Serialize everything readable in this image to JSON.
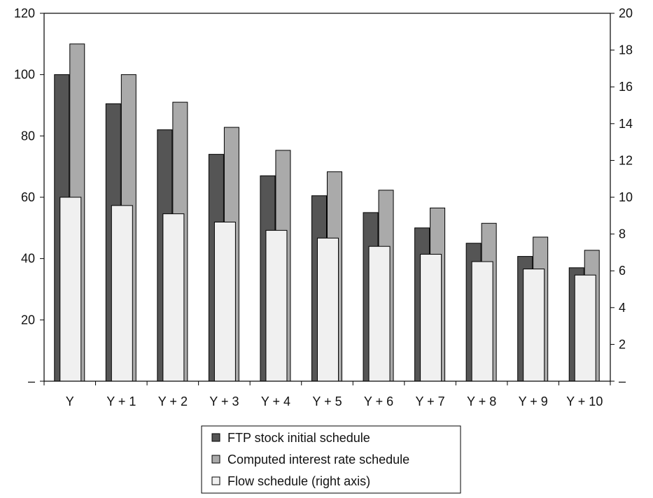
{
  "chart_data": {
    "type": "bar",
    "categories": [
      "Y",
      "Y + 1",
      "Y + 2",
      "Y + 3",
      "Y + 4",
      "Y + 5",
      "Y + 6",
      "Y + 7",
      "Y + 8",
      "Y + 9",
      "Y + 10"
    ],
    "series": [
      {
        "name": "FTP stock initial schedule",
        "axis": "left",
        "color": "#555555",
        "values": [
          100,
          90.5,
          82,
          74,
          67,
          60.5,
          55,
          50,
          45,
          40.7,
          37
        ]
      },
      {
        "name": "Computed interest rate schedule",
        "axis": "left",
        "color": "#aaaaaa",
        "values": [
          110,
          100,
          91,
          82.8,
          75.3,
          68.3,
          62.3,
          56.5,
          51.5,
          47,
          42.7
        ]
      },
      {
        "name": "Flow schedule (right axis)",
        "axis": "right",
        "color": "#f0f0f0",
        "values": [
          10,
          9.55,
          9.1,
          8.65,
          8.2,
          7.78,
          7.33,
          6.9,
          6.5,
          6.1,
          5.77
        ]
      }
    ],
    "left_axis": {
      "min": 0,
      "max": 120,
      "ticks": [
        "–",
        "20",
        "40",
        "60",
        "80",
        "100",
        "120"
      ]
    },
    "right_axis": {
      "min": 0,
      "max": 20,
      "ticks": [
        "–",
        "2",
        "4",
        "6",
        "8",
        "10",
        "12",
        "14",
        "16",
        "18",
        "20"
      ]
    },
    "grid": false,
    "legend_position": "bottom-center"
  }
}
